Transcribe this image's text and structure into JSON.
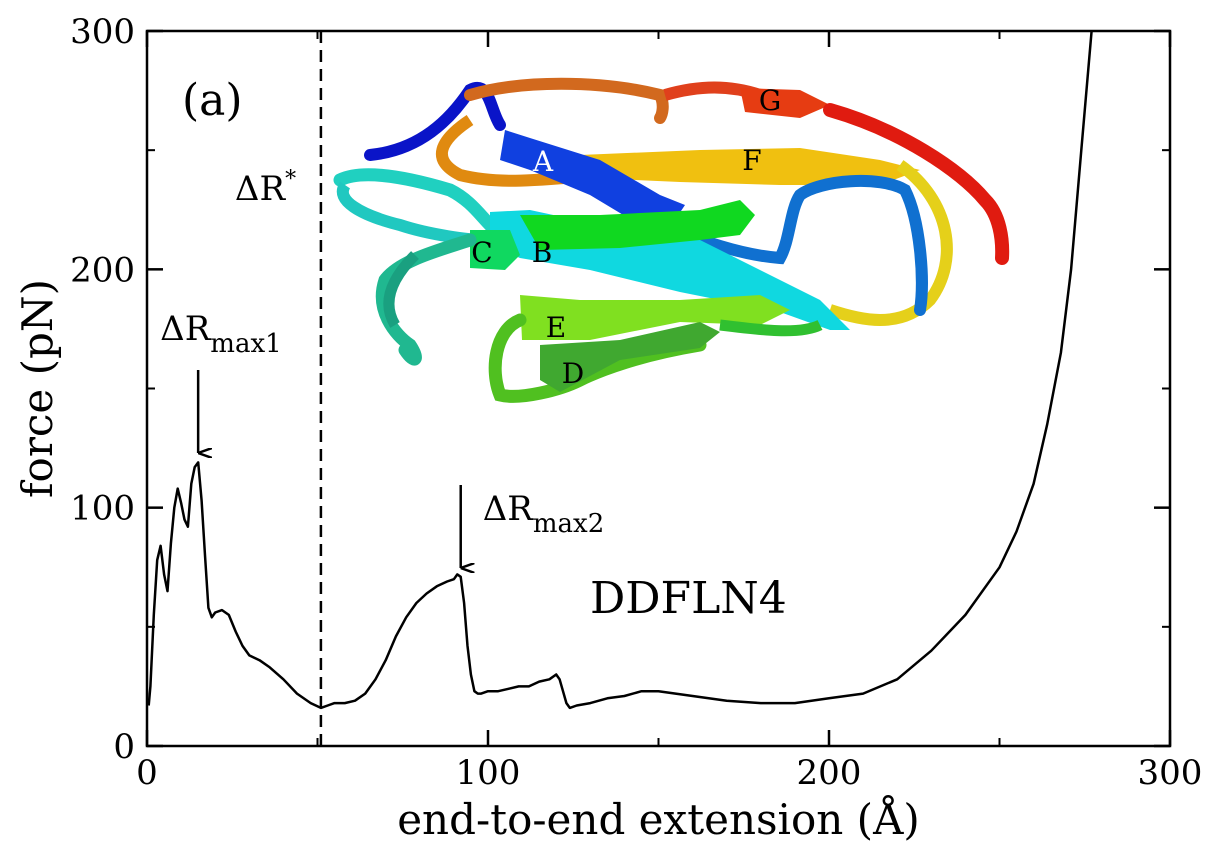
{
  "chart_data": {
    "type": "line",
    "title": "",
    "xlabel": "end-to-end extension (Å)",
    "ylabel": "force (pN)",
    "xlim": [
      0,
      300
    ],
    "ylim": [
      0,
      300
    ],
    "xticks": [
      0,
      100,
      200,
      300
    ],
    "xtick_labels": [
      "0",
      "100",
      "200",
      "300"
    ],
    "yticks": [
      0,
      100,
      200,
      300
    ],
    "ytick_labels": [
      "0",
      "100",
      "200",
      "300"
    ],
    "grid": false,
    "panel_label": "(a)",
    "protein_label": "DDFLN4",
    "vline": {
      "x": 51,
      "label": "ΔR",
      "label_sup": "*"
    },
    "annotations": [
      {
        "label": "ΔR",
        "sub": "max1",
        "x": 15,
        "y": 119
      },
      {
        "label": "ΔR",
        "sub": "max2",
        "x": 92,
        "y": 71
      }
    ],
    "strand_labels": [
      "A",
      "B",
      "C",
      "D",
      "E",
      "F",
      "G"
    ],
    "series": [
      {
        "x": [
          0.5,
          1,
          2,
          3,
          4,
          5,
          6,
          7,
          8,
          9,
          10,
          11,
          12,
          13,
          14,
          15,
          16,
          17,
          18,
          19,
          20,
          22,
          24,
          26,
          28,
          30,
          33,
          36,
          40,
          44,
          48,
          51,
          53,
          55,
          58,
          61,
          64,
          67,
          70,
          73,
          76,
          79,
          82,
          85,
          88,
          90,
          91,
          92,
          93,
          94,
          95,
          96,
          97,
          98,
          100,
          103,
          106,
          109,
          112,
          115,
          118,
          120,
          121,
          122,
          123,
          124,
          126,
          130,
          135,
          140,
          145,
          150,
          160,
          170,
          180,
          190,
          200,
          210,
          220,
          230,
          240,
          250,
          255,
          260,
          264,
          268,
          271,
          274,
          277
        ],
        "y": [
          17,
          25,
          55,
          78,
          84,
          72,
          65,
          85,
          100,
          108,
          102,
          95,
          92,
          110,
          117,
          119,
          103,
          80,
          58,
          54,
          56,
          57,
          55,
          48,
          42,
          38,
          36,
          33,
          28,
          22,
          18,
          16,
          17,
          18,
          18,
          19,
          22,
          28,
          36,
          46,
          54,
          60,
          64,
          67,
          69,
          70,
          72,
          71,
          60,
          42,
          30,
          23,
          22,
          22,
          23,
          23,
          24,
          25,
          25,
          27,
          28,
          30,
          28,
          23,
          18,
          16,
          17,
          18,
          20,
          21,
          23,
          23,
          21,
          19,
          18,
          18,
          20,
          22,
          28,
          40,
          55,
          75,
          90,
          110,
          135,
          165,
          200,
          250,
          300
        ]
      }
    ]
  }
}
